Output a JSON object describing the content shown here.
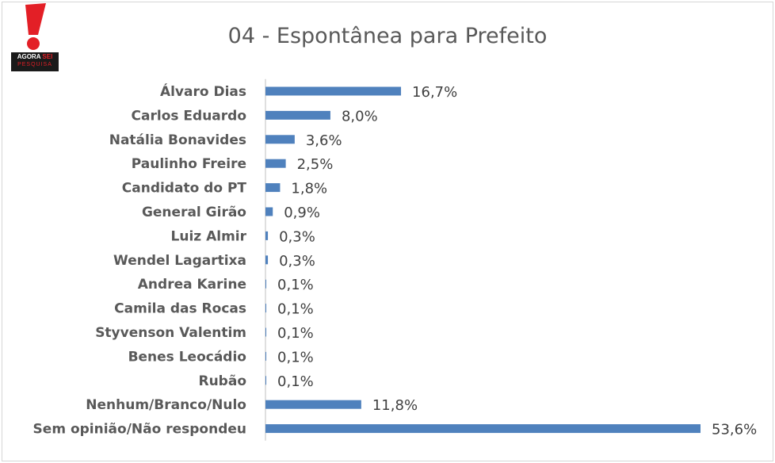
{
  "logo": {
    "line1": "AGORA",
    "line1_accent": "SEI",
    "line2": "PESQUISA"
  },
  "chart_data": {
    "type": "bar",
    "orientation": "horizontal",
    "title": "04 - Espontânea para Prefeito",
    "categories": [
      "Álvaro Dias",
      "Carlos Eduardo",
      "Natália Bonavides",
      "Paulinho Freire",
      "Candidato do PT",
      "General Girão",
      "Luiz Almir",
      "Wendel Lagartixa",
      "Andrea Karine",
      "Camila das Rocas",
      "Styvenson Valentim",
      "Benes Leocádio",
      "Rubão",
      "Nenhum/Branco/Nulo",
      "Sem opinião/Não respondeu"
    ],
    "values": [
      16.7,
      8.0,
      3.6,
      2.5,
      1.8,
      0.9,
      0.3,
      0.3,
      0.1,
      0.1,
      0.1,
      0.1,
      0.1,
      11.8,
      53.6
    ],
    "value_labels": [
      "16,7%",
      "8,0%",
      "3,6%",
      "2,5%",
      "1,8%",
      "0,9%",
      "0,3%",
      "0,3%",
      "0,1%",
      "0,1%",
      "0,1%",
      "0,1%",
      "0,1%",
      "11,8%",
      "53,6%"
    ],
    "xlim": [
      0,
      53.6
    ],
    "bar_color": "#4f81bd",
    "axis_color": "#bfbfbf",
    "grid": false,
    "legend": "none"
  }
}
